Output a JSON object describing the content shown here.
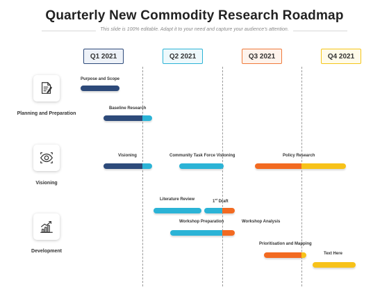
{
  "title": "Quarterly New Commodity Research Roadmap",
  "subtitle": "This slide is 100% editable. Adapt it to your need and capture your audience's attention.",
  "quarters": [
    {
      "label": "Q1 2021",
      "border": "#2d4a7a",
      "fill": "#eef2f8"
    },
    {
      "label": "Q2 2021",
      "border": "#2bb3d6",
      "fill": "#eef9fc"
    },
    {
      "label": "Q3 2021",
      "border": "#f07a3a",
      "fill": "#fef3ec"
    },
    {
      "label": "Q4 2021",
      "border": "#f5c518",
      "fill": "#fffbea"
    }
  ],
  "categories": [
    {
      "label": "Planning and Preparation",
      "icon": "document-pen-icon"
    },
    {
      "label": "Visioning",
      "icon": "eye-icon"
    },
    {
      "label": "Development",
      "icon": "growth-chart-icon"
    }
  ],
  "tasks": {
    "purpose_scope": "Purpose and Scope",
    "baseline_research": "Baseline Research",
    "visioning": "Visioning",
    "community_task_force": "Community Task Force Visioning",
    "policy_research": "Policy Research",
    "literature_review": "Literature Review",
    "first_draft_num": "1",
    "first_draft_sup": "st",
    "first_draft_word": " Draft",
    "workshop_preparation": "Workshop Preparation",
    "workshop_analysis": "Workshop Analysis",
    "prioritisation_mapping": "Prioritisation and Mapping",
    "text_here": "Text Here"
  },
  "colors": {
    "navy": "#2d4a7a",
    "cyan": "#2bb3d6",
    "orange": "#f26a21",
    "yellow": "#f7c21a"
  }
}
